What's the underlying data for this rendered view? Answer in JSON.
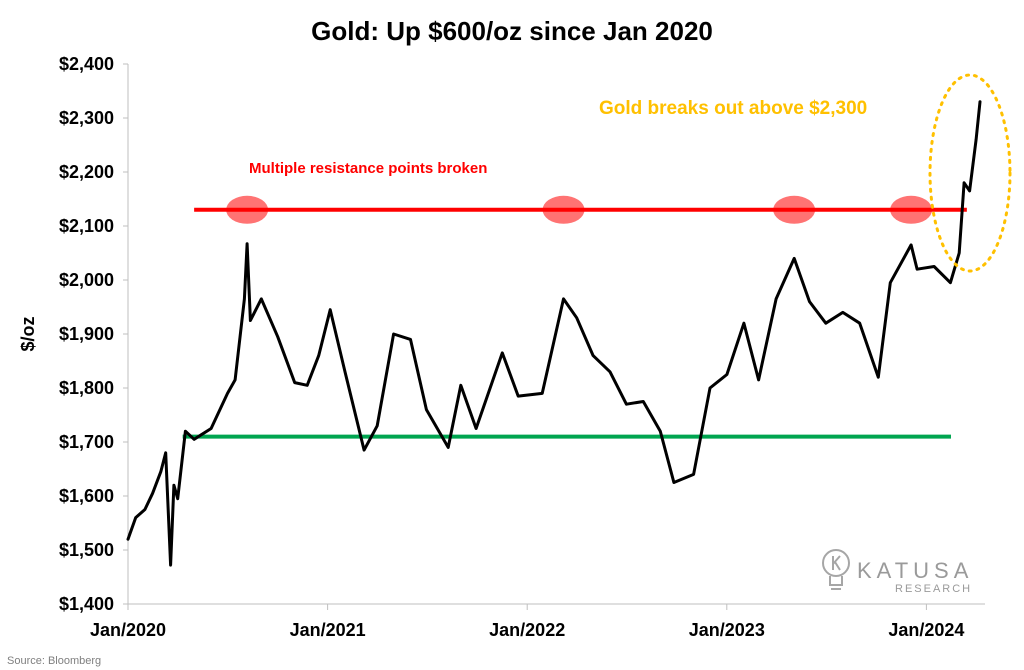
{
  "chart_data": {
    "type": "line",
    "title": "Gold: Up $600/oz since Jan 2020",
    "xlabel": "",
    "ylabel": "$/oz",
    "ylim": [
      1400,
      2400
    ],
    "yticks": [
      "$1,400",
      "$1,500",
      "$1,600",
      "$1,700",
      "$1,800",
      "$1,900",
      "$2,000",
      "$2,100",
      "$2,200",
      "$2,300",
      "$2,400"
    ],
    "xticks": [
      "Jan/2020",
      "Jan/2021",
      "Jan/2022",
      "Jan/2023",
      "Jan/2024"
    ],
    "grid": false,
    "series": [
      {
        "color": "#000000",
        "x": [
          "2020-01-01",
          "2020-01-15",
          "2020-02-01",
          "2020-02-15",
          "2020-03-01",
          "2020-03-10",
          "2020-03-19",
          "2020-03-25",
          "2020-04-01",
          "2020-04-15",
          "2020-05-01",
          "2020-06-01",
          "2020-07-01",
          "2020-07-15",
          "2020-08-01",
          "2020-08-06",
          "2020-08-12",
          "2020-09-01",
          "2020-10-01",
          "2020-11-01",
          "2020-11-24",
          "2020-12-15",
          "2021-01-05",
          "2021-02-01",
          "2021-03-08",
          "2021-04-01",
          "2021-05-01",
          "2021-06-01",
          "2021-06-30",
          "2021-08-09",
          "2021-09-01",
          "2021-09-29",
          "2021-11-16",
          "2021-12-15",
          "2022-01-28",
          "2022-03-08",
          "2022-04-01",
          "2022-05-01",
          "2022-06-01",
          "2022-07-01",
          "2022-08-01",
          "2022-09-01",
          "2022-09-26",
          "2022-11-01",
          "2022-12-01",
          "2023-01-01",
          "2023-02-01",
          "2023-02-28",
          "2023-04-01",
          "2023-05-04",
          "2023-06-01",
          "2023-07-01",
          "2023-08-01",
          "2023-09-01",
          "2023-10-05",
          "2023-10-27",
          "2023-12-04",
          "2023-12-15",
          "2024-01-15",
          "2024-02-14",
          "2024-03-01",
          "2024-03-10",
          "2024-03-20",
          "2024-04-01",
          "2024-04-08"
        ],
        "values": [
          1520,
          1560,
          1575,
          1605,
          1645,
          1680,
          1472,
          1620,
          1595,
          1720,
          1705,
          1725,
          1790,
          1815,
          1965,
          2067,
          1925,
          1965,
          1895,
          1810,
          1805,
          1860,
          1945,
          1830,
          1685,
          1730,
          1900,
          1890,
          1760,
          1690,
          1805,
          1725,
          1865,
          1785,
          1790,
          1965,
          1930,
          1860,
          1830,
          1770,
          1775,
          1720,
          1625,
          1640,
          1800,
          1825,
          1920,
          1815,
          1965,
          2040,
          1960,
          1920,
          1940,
          1920,
          1820,
          1995,
          2065,
          2020,
          2025,
          1995,
          2050,
          2180,
          2165,
          2260,
          2330
        ]
      }
    ],
    "reference_lines": [
      {
        "y": 2130,
        "color": "#ff0000",
        "from": "2020-05-01",
        "to": "2024-03-15"
      },
      {
        "y": 1710,
        "color": "#00a550",
        "from": "2020-04-10",
        "to": "2024-02-15"
      }
    ],
    "highlight_markers": [
      {
        "x": "2020-08-06",
        "y": 2130
      },
      {
        "x": "2022-03-08",
        "y": 2130
      },
      {
        "x": "2023-05-04",
        "y": 2130
      },
      {
        "x": "2023-12-04",
        "y": 2130
      }
    ],
    "annotations": {
      "resistance": "Multiple resistance points broken",
      "breakout": "Gold breaks out above $2,300"
    }
  },
  "source": "Source: Bloomberg",
  "brand": {
    "name": "KATUSA",
    "sub": "RESEARCH"
  }
}
